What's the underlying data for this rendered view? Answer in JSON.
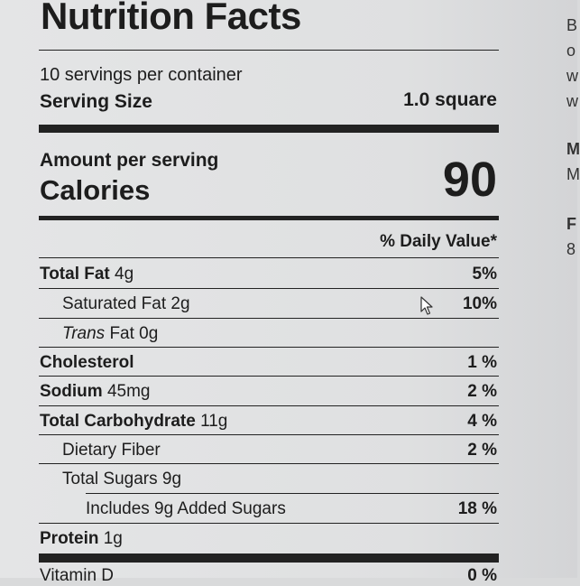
{
  "label": {
    "title": "Nutrition Facts",
    "servings_per_container": "10 servings per container",
    "serving_size_label": "Serving Size",
    "serving_size_value": "1.0 square",
    "amount_per_serving": "Amount per serving",
    "calories_label": "Calories",
    "calories_value": "90",
    "daily_value_header": "% Daily Value*",
    "nutrients": [
      {
        "name": "Total Fat",
        "amount": "4g",
        "dv": "5%"
      },
      {
        "name": "Saturated Fat",
        "amount": "2g",
        "dv": "10%"
      },
      {
        "name": "Trans",
        "amount": "Fat 0g",
        "dv": ""
      },
      {
        "name": "Cholesterol",
        "amount": "",
        "dv": "1 %"
      },
      {
        "name": "Sodium",
        "amount": "45mg",
        "dv": "2 %"
      },
      {
        "name": "Total Carbohydrate",
        "amount": "11g",
        "dv": "4 %"
      },
      {
        "name": "Dietary Fiber",
        "amount": "",
        "dv": "2 %"
      },
      {
        "name": "Total Sugars",
        "amount": "9g",
        "dv": ""
      },
      {
        "name": "Includes 9g Added Sugars",
        "amount": "",
        "dv": "18 %"
      },
      {
        "name": "Protein",
        "amount": "1g",
        "dv": ""
      }
    ],
    "vitamin_row": {
      "name": "Vitamin D",
      "dv": "0 %"
    }
  },
  "sidebar_fragments": [
    "B",
    "o",
    "w",
    "w",
    "M",
    "M",
    "F",
    "8"
  ],
  "colors": {
    "background": "#e4e5e6",
    "text": "#1d1d1d",
    "rule": "#222222"
  }
}
